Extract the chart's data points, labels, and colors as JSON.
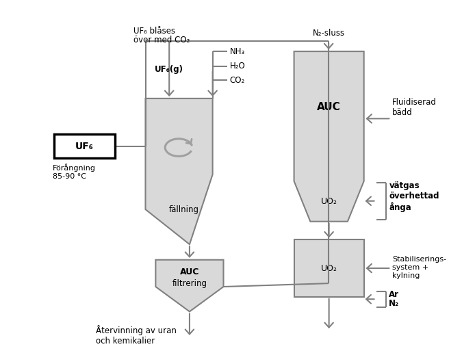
{
  "bg_color": "#ffffff",
  "shape_fill": "#d9d9d9",
  "shape_edge": "#808080",
  "line_color": "#808080",
  "box_fill": "#ffffff",
  "box_edge": "#000000",
  "text_color": "#000000",
  "labels": {
    "uf6_box": "UF₆",
    "forangning": "Förångning\n85-90 °C",
    "uf6_blases_1": "UF₆ blåses",
    "uf6_blases_2": "över med CO₂",
    "uf6_g": "UF₆(g)",
    "nh3": "NH₃",
    "h2o": "H₂O",
    "co2": "CO₂",
    "fallning": "fällning",
    "auc_filt1": "AUC",
    "auc_filt2": "filtrering",
    "atervinning": "Återvinning av uran\noch kemikalier",
    "n2_sluss": "N₂-sluss",
    "auc_label": "AUC",
    "uo2_top": "UO₂",
    "fluidiserad": "Fluidiserad\nbädd",
    "vatgas": "vätgas\növerhettad\nånga",
    "uo2_bot": "UO₂",
    "stabilisering": "Stabiliserings-\nsystem +\nkylning",
    "ar": "Ar",
    "n2": "N₂"
  }
}
